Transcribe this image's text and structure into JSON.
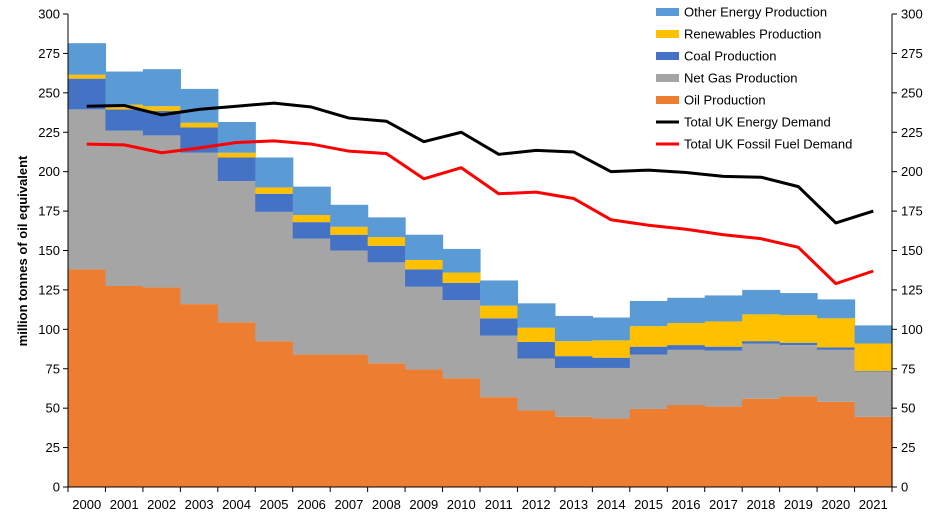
{
  "chart_data": {
    "type": "area",
    "ylabel": "million tonnes of oil equivalent",
    "ylim": [
      0,
      300
    ],
    "yticks": [
      0,
      25,
      50,
      75,
      100,
      125,
      150,
      175,
      200,
      225,
      250,
      275,
      300
    ],
    "secondary_yticks": [
      0,
      25,
      50,
      75,
      100,
      125,
      150,
      175,
      200,
      225,
      250,
      275,
      300
    ],
    "categories": [
      "2000",
      "2001",
      "2002",
      "2003",
      "2004",
      "2005",
      "2006",
      "2007",
      "2008",
      "2009",
      "2010",
      "2011",
      "2012",
      "2013",
      "2014",
      "2015",
      "2016",
      "2017",
      "2018",
      "2019",
      "2020",
      "2021"
    ],
    "grid": false,
    "legend_position": "top-right",
    "stacked_series": [
      {
        "name": "Oil Production",
        "color": "#ED7D31",
        "values": [
          138,
          127.5,
          126.5,
          116,
          104.5,
          92.5,
          84,
          84,
          78.5,
          74.5,
          69,
          57,
          48.5,
          44.5,
          43.5,
          49.5,
          52,
          51,
          56,
          57.5,
          54,
          44.5
        ]
      },
      {
        "name": "Net Gas Production",
        "color": "#A5A5A5",
        "values": [
          101.5,
          98.5,
          96.5,
          96,
          89.5,
          82,
          73.5,
          66,
          64,
          52.5,
          49.5,
          39,
          33,
          31,
          32,
          34.5,
          35,
          35.5,
          35,
          32.5,
          33,
          28.5
        ]
      },
      {
        "name": "Coal Production",
        "color": "#4472C4",
        "values": [
          19.5,
          13.5,
          15.5,
          16,
          15,
          11.5,
          10.5,
          10,
          10.5,
          11,
          11,
          11,
          10.5,
          7.5,
          6.5,
          5,
          3,
          2.5,
          1.5,
          1.5,
          1.5,
          0.5
        ]
      },
      {
        "name": "Renewables Production",
        "color": "#FFC000",
        "values": [
          2.5,
          3,
          3,
          3,
          3,
          4,
          4.5,
          5,
          5.5,
          6,
          6.5,
          8,
          9,
          9.5,
          11,
          13,
          14,
          16,
          17,
          17.5,
          18.5,
          17.5
        ]
      },
      {
        "name": "Other Energy Production",
        "color": "#5B9BD5",
        "values": [
          20,
          21,
          23.5,
          21.5,
          19.5,
          19,
          18,
          14,
          12.5,
          16,
          15,
          16,
          15.5,
          16,
          14.5,
          16,
          16,
          16.5,
          15.5,
          14,
          12,
          11.5
        ]
      }
    ],
    "line_series": [
      {
        "name": "Total UK Energy Demand",
        "color": "#000000",
        "values": [
          241.5,
          242,
          236,
          239.5,
          241.5,
          243.5,
          241,
          234,
          232,
          219,
          225,
          211,
          213.5,
          212.5,
          200,
          201,
          199.5,
          197,
          196.5,
          190.5,
          167.5,
          175
        ]
      },
      {
        "name": "Total UK Fossil Fuel Demand",
        "color": "#FF0000",
        "values": [
          217.5,
          217,
          212,
          215,
          218.5,
          219.5,
          217.5,
          213,
          211.5,
          195.5,
          202.5,
          186,
          187,
          183,
          169.5,
          166,
          163.5,
          160,
          157.5,
          152,
          129,
          137
        ]
      }
    ],
    "legend": [
      {
        "label": "Other Energy Production",
        "kind": "swatch",
        "color": "#5B9BD5"
      },
      {
        "label": "Renewables Production",
        "kind": "swatch",
        "color": "#FFC000"
      },
      {
        "label": "Coal Production",
        "kind": "swatch",
        "color": "#4472C4"
      },
      {
        "label": "Net Gas Production",
        "kind": "swatch",
        "color": "#A5A5A5"
      },
      {
        "label": "Oil Production",
        "kind": "swatch",
        "color": "#ED7D31"
      },
      {
        "label": "Total UK Energy Demand",
        "kind": "line",
        "color": "#000000"
      },
      {
        "label": "Total UK Fossil Fuel Demand",
        "kind": "line",
        "color": "#FF0000"
      }
    ]
  }
}
